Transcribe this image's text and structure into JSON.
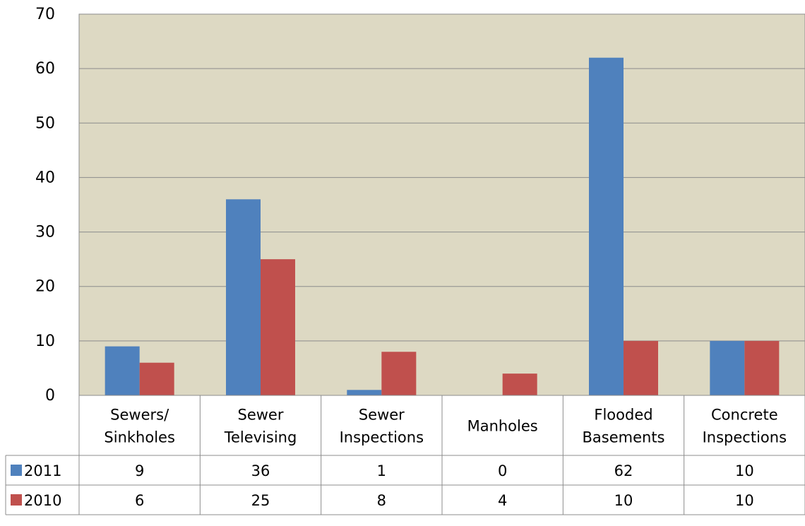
{
  "chart_data": {
    "type": "bar",
    "title": "",
    "xlabel": "",
    "ylabel": "",
    "ylim": [
      0,
      70
    ],
    "yticks": [
      0,
      10,
      20,
      30,
      40,
      50,
      60,
      70
    ],
    "grid": true,
    "legend_placement": "data table rows",
    "plot_background": "#ddd9c3",
    "categories": [
      [
        "Sewers/",
        "Sinkholes"
      ],
      [
        "Sewer",
        "Televising"
      ],
      [
        "Sewer",
        "Inspections"
      ],
      [
        "Manholes"
      ],
      [
        "Flooded",
        "Basements"
      ],
      [
        "Concrete",
        "Inspections"
      ]
    ],
    "series": [
      {
        "name": "2011",
        "color": "#4f81bd",
        "values": [
          9,
          36,
          1,
          0,
          62,
          10
        ]
      },
      {
        "name": "2010",
        "color": "#c0504d",
        "values": [
          6,
          25,
          8,
          4,
          10,
          10
        ]
      }
    ]
  }
}
